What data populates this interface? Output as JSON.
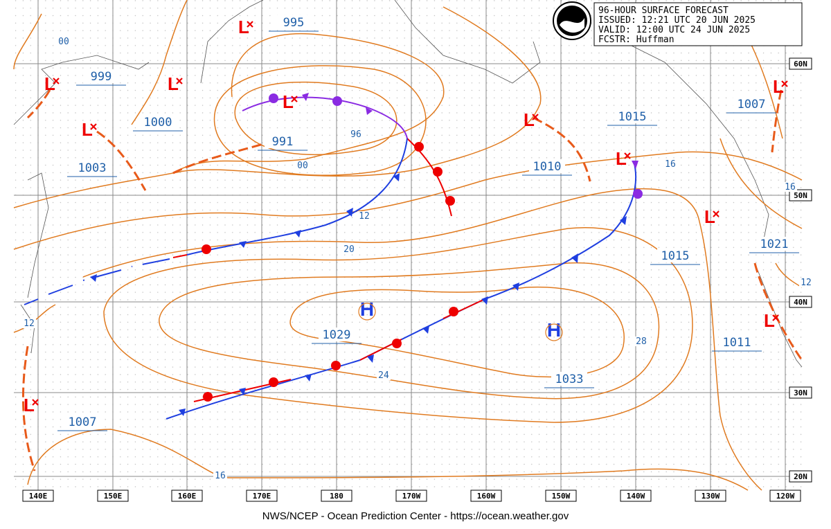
{
  "header": {
    "lines": [
      "96-HOUR SURFACE FORECAST",
      "ISSUED: 12:21 UTC 20 JUN 2025",
      "VALID:  12:00 UTC 24 JUN 2025",
      "FCSTR:  Huffman"
    ]
  },
  "centers": [
    {
      "label": "L"
    },
    {
      "label": "L"
    },
    {
      "label": "L"
    },
    {
      "label": "L"
    },
    {
      "label": "L"
    },
    {
      "label": "L"
    },
    {
      "label": "L"
    },
    {
      "label": "L"
    },
    {
      "label": "L"
    },
    {
      "label": "L"
    },
    {
      "label": "L"
    },
    {
      "label": "H"
    },
    {
      "label": "H"
    }
  ],
  "pressure_labels": [
    "995",
    "999",
    "1000",
    "1003",
    "991",
    "1010",
    "1015",
    "1007",
    "1015",
    "1021",
    "1029",
    "1033",
    "1011",
    "1007"
  ],
  "isobar_labels": [
    "00",
    "96",
    "00",
    "12",
    "20",
    "16",
    "16",
    "12",
    "12",
    "28",
    "24",
    "16"
  ],
  "longitude_labels": [
    "140E",
    "150E",
    "160E",
    "170E",
    "180",
    "170W",
    "160W",
    "150W",
    "140W",
    "130W",
    "120W"
  ],
  "latitude_labels": [
    "60N",
    "50N",
    "40N",
    "30N",
    "20N"
  ],
  "footer": "NWS/NCEP - Ocean Prediction Center - https://ocean.weather.gov"
}
